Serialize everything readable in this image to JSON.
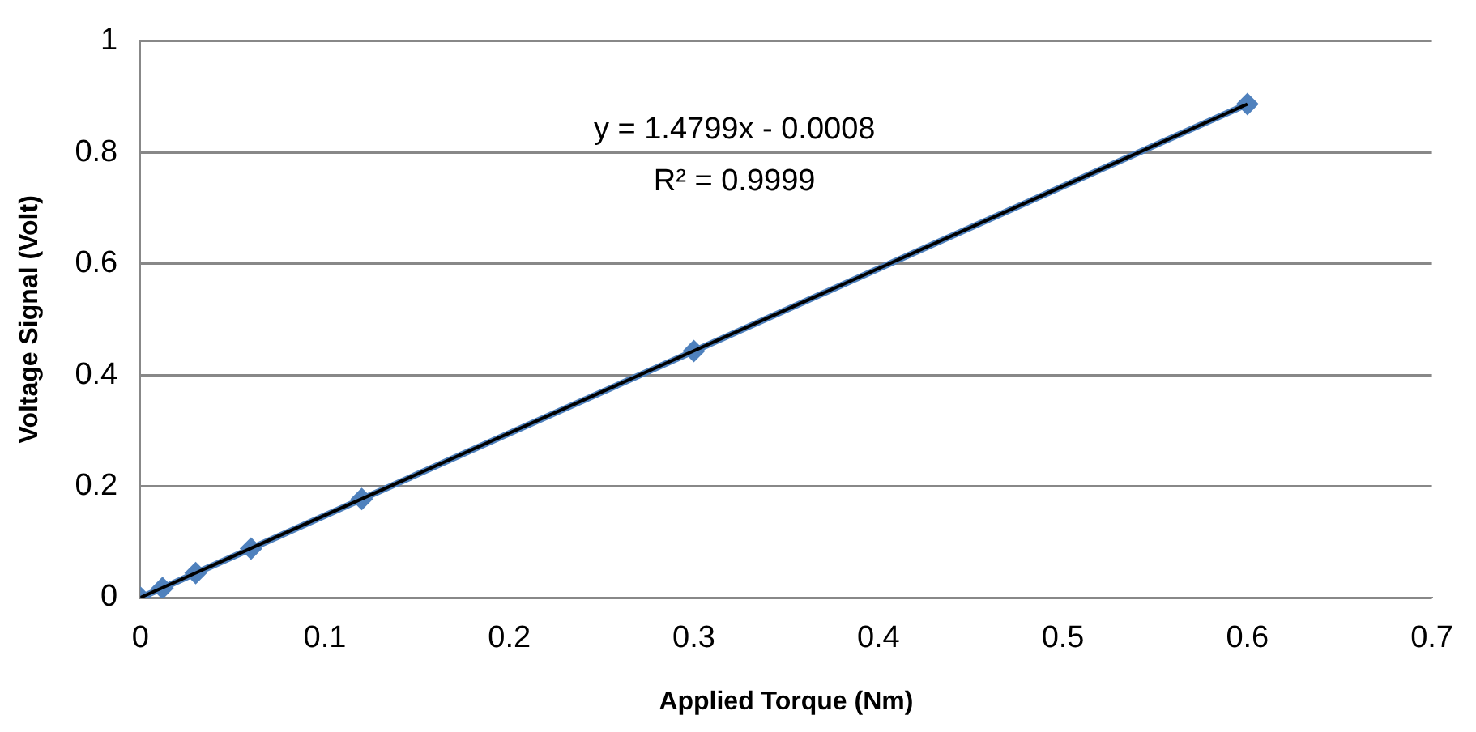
{
  "chart_data": {
    "type": "line",
    "xlabel": "Applied Torque (Nm)",
    "ylabel": "Voltage Signal (Volt)",
    "xlim": [
      0,
      0.7
    ],
    "xticks": [
      0,
      0.1,
      0.2,
      0.3,
      0.4,
      0.5,
      0.6,
      0.7
    ],
    "ylim": [
      0,
      1
    ],
    "yticks": [
      0,
      0.2,
      0.4,
      0.6,
      0.8,
      1
    ],
    "grid": "y",
    "legend": false,
    "marker": "diamond",
    "line_style": "solid",
    "series": [
      {
        "color": "#4f81bd",
        "x": [
          0,
          0.012,
          0.03,
          0.06,
          0.12,
          0.3,
          0.6
        ],
        "values": [
          0,
          0.017,
          0.044,
          0.088,
          0.177,
          0.443,
          0.887
        ]
      },
      {
        "type": "line",
        "color": "#000000",
        "marker": "none",
        "x": [
          0,
          0.6
        ],
        "values": [
          0,
          0.887
        ]
      }
    ],
    "annotations": [
      "y = 1.4799x - 0.0008",
      "R² = 0.9999"
    ]
  }
}
